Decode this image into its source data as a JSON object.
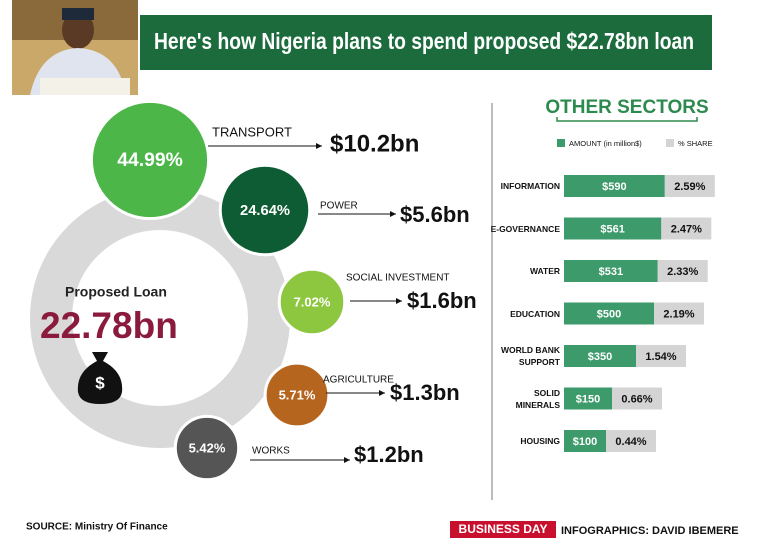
{
  "header": {
    "title": "Here's how Nigeria plans to spend  proposed $22.78bn loan"
  },
  "loan": {
    "label": "Proposed Loan",
    "amount": "22.78bn"
  },
  "chart_data": [
    {
      "type": "bubble",
      "categories": [
        "TRANSPORT",
        "POWER",
        "SOCIAL INVESTMENT",
        "AGRICULTURE",
        "WORKS"
      ],
      "values": [
        44.99,
        24.64,
        7.02,
        5.71,
        5.42
      ],
      "value_labels": [
        "44.99%",
        "24.64%",
        "7.02%",
        "5.71%",
        "5.42%"
      ],
      "amounts": [
        10.2,
        5.6,
        1.6,
        1.3,
        1.2
      ],
      "amount_labels": [
        "$10.2bn",
        "$5.6bn",
        "$1.6bn",
        "$1.3bn",
        "$1.2bn"
      ],
      "colors": [
        "#4cb748",
        "#0e5c33",
        "#8dc63f",
        "#b5651d",
        "#555555"
      ]
    },
    {
      "type": "bar",
      "title": "OTHER SECTORS",
      "categories": [
        "INFORMATION",
        "E-GOVERNANCE",
        "WATER",
        "EDUCATION",
        "WORLD BANK SUPPORT",
        "SOLID MINERALS",
        "HOUSING"
      ],
      "series": [
        {
          "name": "AMOUNT (in million$)",
          "color": "#3d9a6a",
          "values": [
            590,
            561,
            531,
            500,
            350,
            150,
            100
          ],
          "value_labels": [
            "$590",
            "$561",
            "$531",
            "$500",
            "$350",
            "$150",
            "$100"
          ]
        },
        {
          "name": "% SHARE",
          "color": "#d4d4d4",
          "values": [
            2.59,
            2.47,
            2.33,
            2.19,
            1.54,
            0.66,
            0.44
          ],
          "value_labels": [
            "2.59%",
            "2.47%",
            "2.33%",
            "2.19%",
            "1.54%",
            "0.66%",
            "0.44%"
          ]
        }
      ]
    }
  ],
  "footer": {
    "source": "SOURCE: Ministry Of Finance",
    "brand": "BUSINESS DAY",
    "credit": "INFOGRAPHICS: DAVID IBEMERE"
  }
}
